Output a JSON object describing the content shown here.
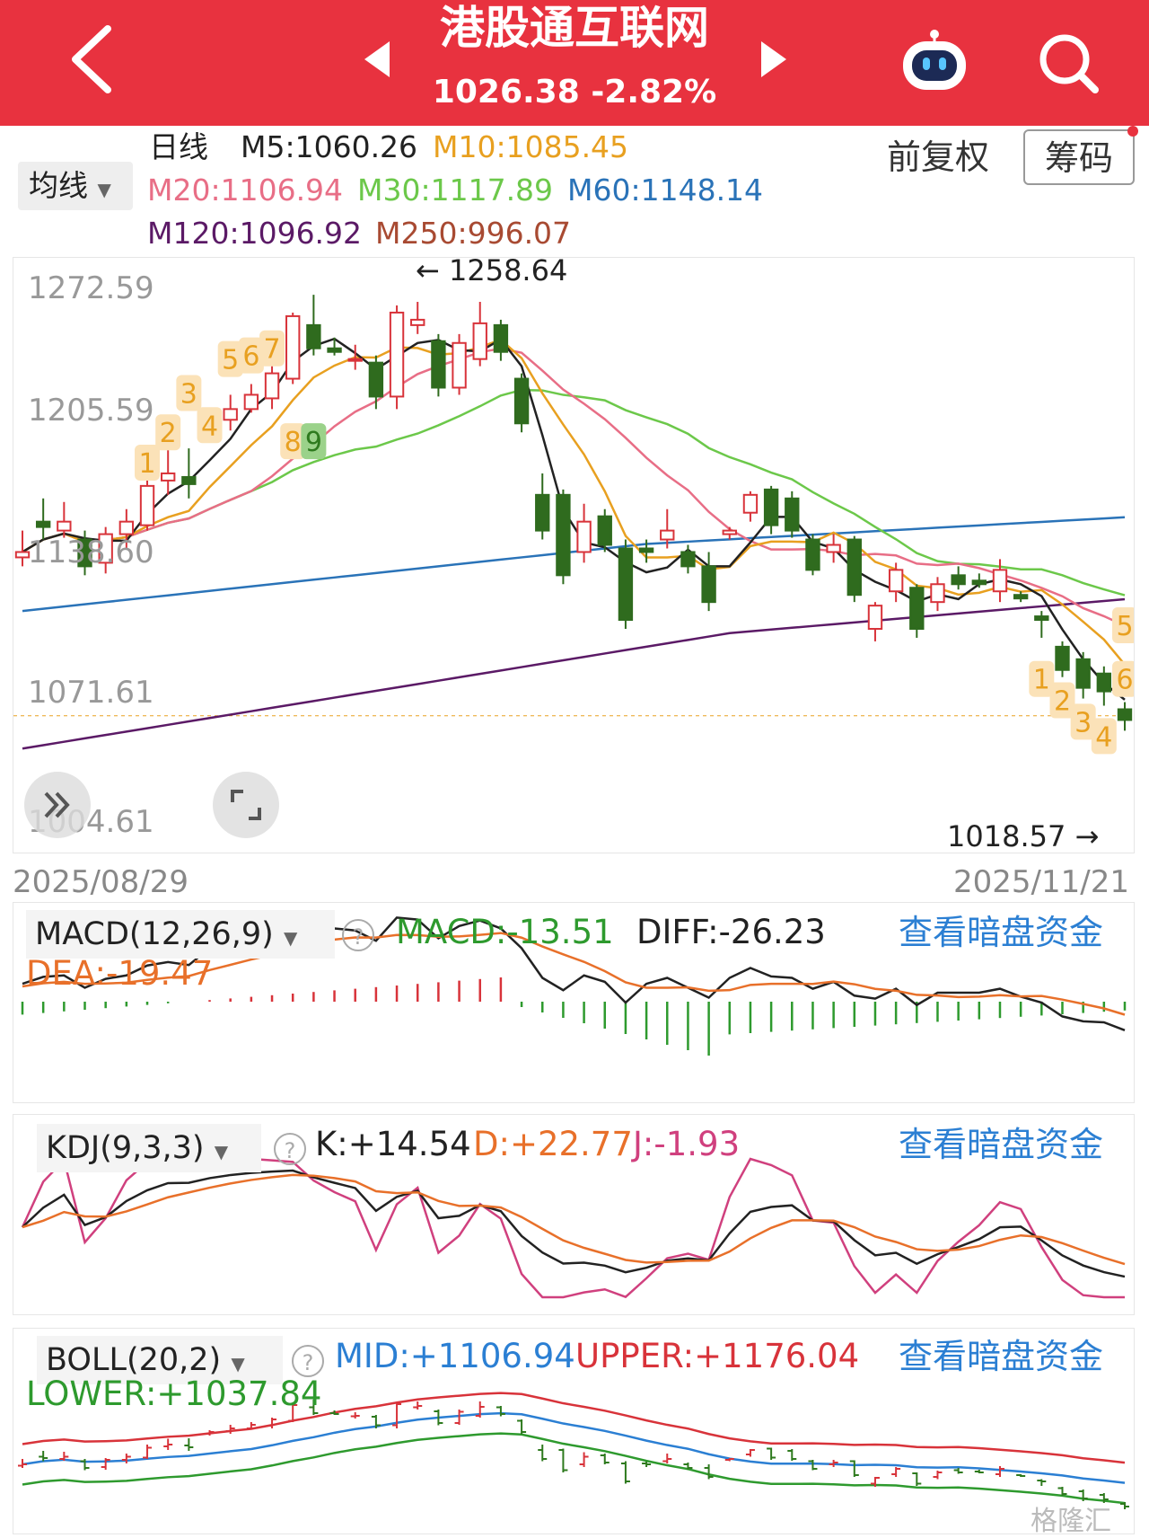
{
  "header": {
    "title": "港股通互联网",
    "price": "1026.38",
    "change": "-2.82%"
  },
  "ma_legend": {
    "period": "日线",
    "dropdown": "均线",
    "m5": "M5:1060.26",
    "m10": "M10:1085.45",
    "m20": "M20:1106.94",
    "m30": "M30:1117.89",
    "m60": "M60:1148.14",
    "m120": "M120:1096.92",
    "m250": "M250:996.07",
    "colors": {
      "m5": "#222222",
      "m10": "#e8a020",
      "m20": "#e86e86",
      "m30": "#6cc84a",
      "m60": "#2a73b8",
      "m120": "#5b1a66",
      "m250": "#a84a32"
    }
  },
  "controls": {
    "adjust": "前复权",
    "chips": "筹码"
  },
  "main_chart": {
    "y_labels": [
      "1272.59",
      "1205.59",
      "1138.60",
      "1071.61",
      "1004.61"
    ],
    "high_marker": "1258.64",
    "low_marker": "1018.57",
    "start_date": "2025/08/29",
    "end_date": "2025/11/21",
    "seq_labels": [
      "1",
      "2",
      "3",
      "4",
      "5",
      "6",
      "7",
      "8",
      "9"
    ],
    "seq_labels_down": [
      "5",
      "6",
      "1",
      "2",
      "3",
      "4"
    ]
  },
  "macd": {
    "dropdown": "MACD(12,26,9)",
    "macd": "MACD:-13.51",
    "diff": "DIFF:-26.23",
    "dea": "DEA:-19.47",
    "link": "查看暗盘资金"
  },
  "kdj": {
    "dropdown": "KDJ(9,3,3)",
    "k": "K:+14.54",
    "d": "D:+22.77",
    "j": "J:-1.93",
    "link": "查看暗盘资金"
  },
  "boll": {
    "dropdown": "BOLL(20,2)",
    "mid": "MID:+1106.94",
    "upper": "UPPER:+1176.04",
    "lower": "LOWER:+1037.84",
    "link": "查看暗盘资金"
  },
  "watermark": "格隆汇",
  "chart_data": {
    "type": "candlestick",
    "x_range": [
      "2025/08/29",
      "2025/11/21"
    ],
    "ylim": [
      1004.61,
      1272.59
    ],
    "high": 1258.64,
    "low": 1018.57,
    "last": 1026.38,
    "ma": {
      "M5": 1060.26,
      "M10": 1085.45,
      "M20": 1106.94,
      "M30": 1117.89,
      "M60": 1148.14,
      "M120": 1096.92,
      "M250": 996.07
    },
    "candles": [
      [
        1115,
        1118,
        1110,
        1130
      ],
      [
        1135,
        1132,
        1125,
        1148
      ],
      [
        1130,
        1135,
        1126,
        1146
      ],
      [
        1125,
        1110,
        1105,
        1130
      ],
      [
        1112,
        1128,
        1106,
        1132
      ],
      [
        1128,
        1135,
        1120,
        1142
      ],
      [
        1133,
        1155,
        1130,
        1162
      ],
      [
        1158,
        1162,
        1150,
        1175
      ],
      [
        1160,
        1156,
        1148,
        1176
      ],
      [
        1186,
        1190,
        1182,
        1194
      ],
      [
        1192,
        1198,
        1186,
        1206
      ],
      [
        1198,
        1206,
        1196,
        1212
      ],
      [
        1204,
        1218,
        1198,
        1222
      ],
      [
        1215,
        1250,
        1212,
        1252
      ],
      [
        1245,
        1232,
        1228,
        1262
      ],
      [
        1232,
        1230,
        1228,
        1238
      ],
      [
        1225,
        1226,
        1220,
        1234
      ],
      [
        1224,
        1205,
        1198,
        1228
      ],
      [
        1205,
        1252,
        1198,
        1256
      ],
      [
        1245,
        1248,
        1240,
        1258
      ],
      [
        1236,
        1210,
        1205,
        1240
      ],
      [
        1210,
        1235,
        1206,
        1240
      ],
      [
        1226,
        1246,
        1222,
        1258
      ],
      [
        1245,
        1230,
        1225,
        1248
      ],
      [
        1215,
        1190,
        1185,
        1218
      ],
      [
        1150,
        1130,
        1125,
        1162
      ],
      [
        1150,
        1105,
        1100,
        1153
      ],
      [
        1118,
        1135,
        1112,
        1145
      ],
      [
        1138,
        1122,
        1118,
        1142
      ],
      [
        1120,
        1080,
        1075,
        1125
      ],
      [
        1120,
        1118,
        1112,
        1125
      ],
      [
        1125,
        1130,
        1120,
        1142
      ],
      [
        1118,
        1110,
        1106,
        1122
      ],
      [
        1110,
        1090,
        1085,
        1118
      ],
      [
        1128,
        1130,
        1125,
        1132
      ],
      [
        1140,
        1150,
        1135,
        1152
      ],
      [
        1153,
        1133,
        1128,
        1155
      ],
      [
        1148,
        1130,
        1126,
        1152
      ],
      [
        1125,
        1108,
        1105,
        1128
      ],
      [
        1118,
        1122,
        1112,
        1128
      ],
      [
        1125,
        1094,
        1090,
        1127
      ],
      [
        1075,
        1088,
        1068,
        1090
      ],
      [
        1096,
        1108,
        1090,
        1112
      ],
      [
        1098,
        1075,
        1070,
        1100
      ],
      [
        1090,
        1100,
        1085,
        1104
      ],
      [
        1105,
        1100,
        1097,
        1110
      ],
      [
        1102,
        1100,
        1098,
        1106
      ],
      [
        1096,
        1108,
        1090,
        1114
      ],
      [
        1094,
        1092,
        1090,
        1096
      ],
      [
        1082,
        1080,
        1070,
        1085
      ],
      [
        1065,
        1052,
        1048,
        1068
      ],
      [
        1058,
        1042,
        1036,
        1062
      ],
      [
        1050,
        1040,
        1032,
        1054
      ],
      [
        1030,
        1024,
        1018,
        1034
      ]
    ]
  }
}
